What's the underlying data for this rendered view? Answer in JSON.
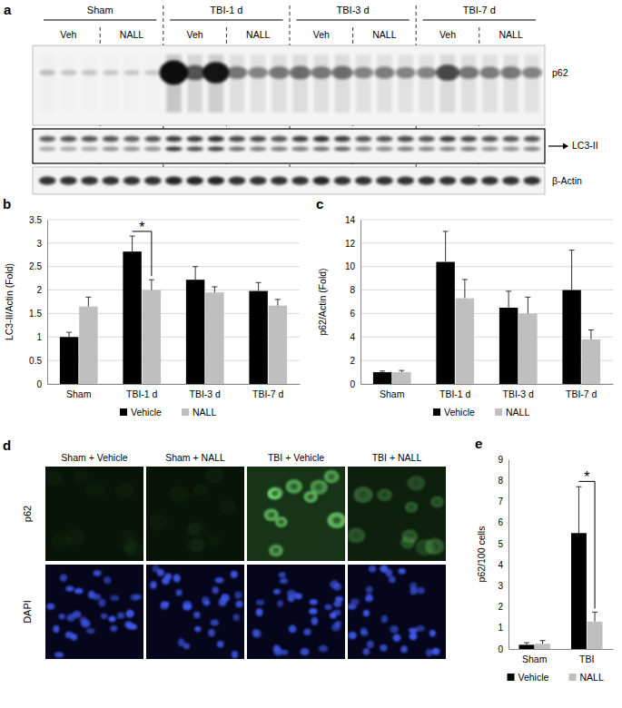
{
  "blot": {
    "panel": "a",
    "groups": [
      "Sham",
      "TBI-1 d",
      "TBI-3 d",
      "TBI-7 d"
    ],
    "treatments": [
      "Veh",
      "NALL"
    ],
    "bands": [
      {
        "label": "p62",
        "intensities": [
          0.08,
          0.06,
          0.06,
          0.05,
          0.05,
          0.05,
          1.0,
          0.55,
          0.85,
          0.4,
          0.35,
          0.4,
          0.45,
          0.4,
          0.45,
          0.35,
          0.38,
          0.35,
          0.35,
          0.6,
          0.4,
          0.38,
          0.4,
          0.35
        ]
      },
      {
        "label": "LC3-II",
        "intensities": [
          0.35,
          0.35,
          0.35,
          0.45,
          0.45,
          0.45,
          0.85,
          0.75,
          0.8,
          0.6,
          0.55,
          0.55,
          0.55,
          0.6,
          0.65,
          0.5,
          0.5,
          0.55,
          0.5,
          0.5,
          0.55,
          0.45,
          0.45,
          0.5
        ],
        "upper_intensities": [
          0.65,
          0.7,
          0.7,
          0.7,
          0.65,
          0.7,
          0.8,
          0.8,
          0.85,
          0.75,
          0.75,
          0.7,
          0.8,
          0.85,
          0.8,
          0.7,
          0.7,
          0.75,
          0.7,
          0.8,
          0.75,
          0.7,
          0.7,
          0.7
        ]
      },
      {
        "label": "β-Actin",
        "intensities": [
          0.85,
          0.85,
          0.85,
          0.85,
          0.85,
          0.85,
          0.9,
          0.9,
          0.9,
          0.85,
          0.85,
          0.85,
          0.85,
          0.9,
          0.85,
          0.85,
          0.85,
          0.85,
          0.85,
          0.85,
          0.85,
          0.85,
          0.85,
          0.85
        ]
      }
    ]
  },
  "micrographs": {
    "panel": "d",
    "conditions": [
      "Sham + Vehicle",
      "Sham + NALL",
      "TBI + Vehicle",
      "TBI + NALL"
    ],
    "stains": [
      "p62",
      "DAPI"
    ],
    "p62_brightness": [
      0.05,
      0.05,
      0.75,
      0.3
    ]
  },
  "chart_data": [
    {
      "type": "bar",
      "title": "b",
      "y_label": "LC3-II/Actin (Fold)",
      "categories": [
        "Sham",
        "TBI-1 d",
        "TBI-3 d",
        "TBI-7 d"
      ],
      "series": [
        {
          "name": "Vehicle",
          "color": "#000000",
          "values": [
            1.0,
            2.82,
            2.22,
            1.98
          ],
          "errors": [
            0.1,
            0.33,
            0.28,
            0.18
          ]
        },
        {
          "name": "NALL",
          "color": "#bfbfbf",
          "values": [
            1.65,
            2.0,
            1.95,
            1.67
          ],
          "errors": [
            0.2,
            0.22,
            0.12,
            0.13
          ]
        }
      ],
      "ylim": [
        0,
        3.5
      ],
      "yticks": [
        0,
        0.5,
        1,
        1.5,
        2,
        2.5,
        3,
        3.5
      ],
      "grid": true,
      "legend": "bottom",
      "annotations": [
        {
          "text": "*",
          "category": "TBI-1 d",
          "y": 3.25
        }
      ]
    },
    {
      "type": "bar",
      "title": "c",
      "y_label": "p62/Actin (Fold)",
      "categories": [
        "Sham",
        "TBI-1 d",
        "TBI-3 d",
        "TBI-7 d"
      ],
      "series": [
        {
          "name": "Vehicle",
          "color": "#000000",
          "values": [
            1.0,
            10.4,
            6.5,
            8.0
          ],
          "errors": [
            0.1,
            2.6,
            1.4,
            3.4
          ]
        },
        {
          "name": "NALL",
          "color": "#bfbfbf",
          "values": [
            1.0,
            7.3,
            6.0,
            3.8
          ],
          "errors": [
            0.15,
            1.6,
            1.4,
            0.8
          ]
        }
      ],
      "ylim": [
        0,
        14
      ],
      "yticks": [
        0,
        2,
        4,
        6,
        8,
        10,
        12,
        14
      ],
      "grid": true,
      "legend": "bottom"
    },
    {
      "type": "bar",
      "title": "e",
      "y_label": "p62/100 cells",
      "categories": [
        "Sham",
        "TBI"
      ],
      "series": [
        {
          "name": "Vehicle",
          "color": "#000000",
          "values": [
            0.2,
            5.5
          ],
          "errors": [
            0.1,
            2.2
          ]
        },
        {
          "name": "NALL",
          "color": "#bfbfbf",
          "values": [
            0.25,
            1.3
          ],
          "errors": [
            0.15,
            0.45
          ]
        }
      ],
      "ylim": [
        0,
        9
      ],
      "yticks": [
        0,
        1,
        2,
        3,
        4,
        5,
        6,
        7,
        8,
        9
      ],
      "grid": false,
      "legend": "bottom",
      "annotations": [
        {
          "text": "*",
          "category": "TBI",
          "y": 7.95
        }
      ]
    }
  ]
}
